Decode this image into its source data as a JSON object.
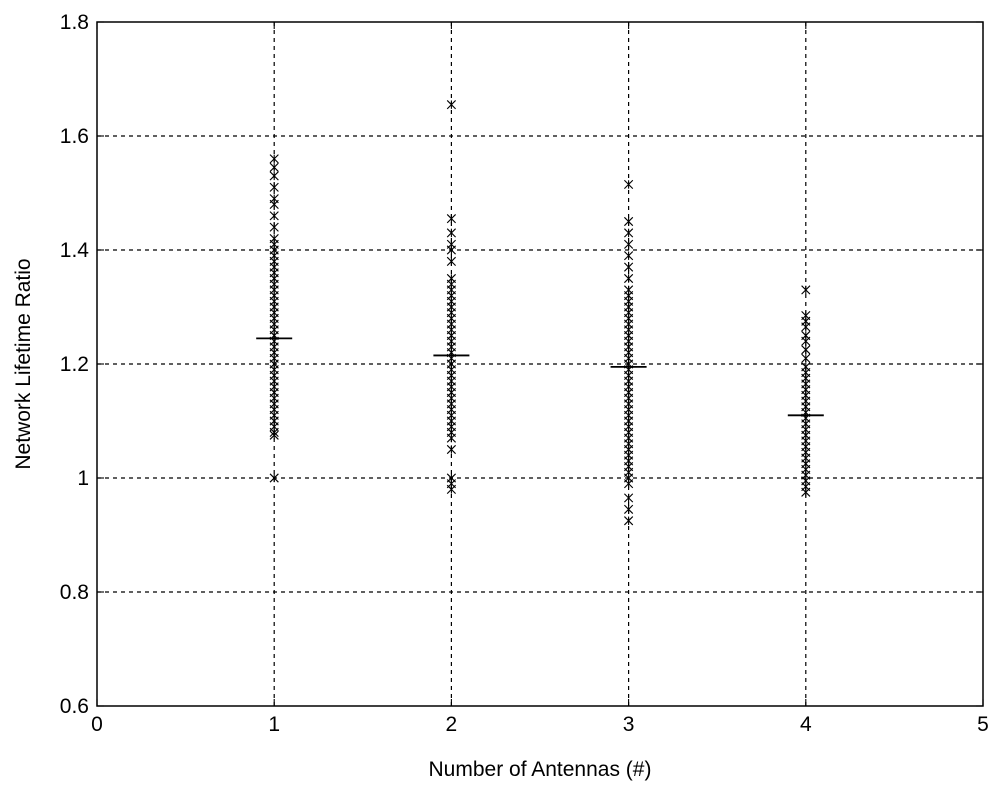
{
  "chart_data": {
    "type": "scatter",
    "title": "",
    "xlabel": "Number of Antennas (#)",
    "ylabel": "Network Lifetime Ratio",
    "xlim": [
      0,
      5
    ],
    "ylim": [
      0.6,
      1.8
    ],
    "xticks": [
      "0",
      "1",
      "2",
      "3",
      "4",
      "5"
    ],
    "yticks": [
      "0.6",
      "0.8",
      "1",
      "1.2",
      "1.4",
      "1.6",
      "1.8"
    ],
    "grid": true,
    "marker": "x",
    "series": [
      {
        "x": 1,
        "mean": 1.245,
        "values": [
          1.0,
          1.075,
          1.08,
          1.09,
          1.1,
          1.11,
          1.12,
          1.13,
          1.14,
          1.15,
          1.16,
          1.17,
          1.18,
          1.19,
          1.2,
          1.21,
          1.22,
          1.23,
          1.24,
          1.25,
          1.26,
          1.27,
          1.28,
          1.29,
          1.3,
          1.31,
          1.32,
          1.33,
          1.34,
          1.35,
          1.36,
          1.37,
          1.38,
          1.39,
          1.4,
          1.41,
          1.42,
          1.44,
          1.46,
          1.48,
          1.49,
          1.51,
          1.53,
          1.545,
          1.56
        ]
      },
      {
        "x": 2,
        "mean": 1.215,
        "values": [
          0.98,
          0.99,
          1.0,
          1.05,
          1.07,
          1.08,
          1.09,
          1.1,
          1.11,
          1.12,
          1.13,
          1.14,
          1.15,
          1.16,
          1.17,
          1.18,
          1.19,
          1.2,
          1.21,
          1.22,
          1.23,
          1.24,
          1.25,
          1.26,
          1.27,
          1.28,
          1.29,
          1.3,
          1.31,
          1.32,
          1.33,
          1.34,
          1.35,
          1.38,
          1.4,
          1.41,
          1.43,
          1.455,
          1.655
        ]
      },
      {
        "x": 3,
        "mean": 1.195,
        "values": [
          0.925,
          0.945,
          0.965,
          0.99,
          1.0,
          1.01,
          1.02,
          1.03,
          1.04,
          1.05,
          1.06,
          1.07,
          1.08,
          1.09,
          1.1,
          1.11,
          1.12,
          1.13,
          1.14,
          1.15,
          1.16,
          1.17,
          1.18,
          1.19,
          1.2,
          1.21,
          1.22,
          1.23,
          1.24,
          1.25,
          1.26,
          1.27,
          1.28,
          1.29,
          1.3,
          1.31,
          1.32,
          1.33,
          1.35,
          1.37,
          1.39,
          1.41,
          1.43,
          1.45,
          1.515
        ]
      },
      {
        "x": 4,
        "mean": 1.11,
        "values": [
          0.975,
          0.985,
          0.995,
          1.005,
          1.015,
          1.025,
          1.035,
          1.045,
          1.055,
          1.065,
          1.075,
          1.085,
          1.095,
          1.105,
          1.115,
          1.125,
          1.135,
          1.145,
          1.155,
          1.165,
          1.175,
          1.185,
          1.195,
          1.21,
          1.225,
          1.24,
          1.25,
          1.265,
          1.275,
          1.285,
          1.33
        ]
      }
    ]
  }
}
